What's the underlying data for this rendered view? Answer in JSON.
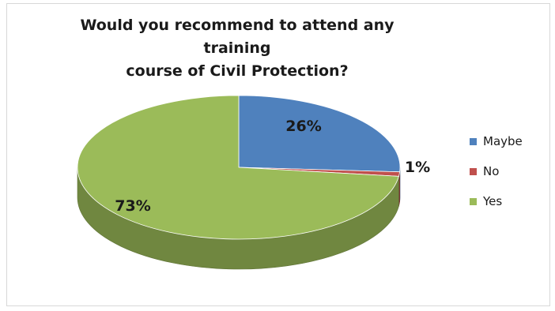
{
  "chart_data": {
    "type": "pie",
    "title_lines": [
      "Would you recommend to attend any training",
      "course of Civil Protection?"
    ],
    "slices": [
      {
        "label": "Maybe",
        "value": 26,
        "display": "26%",
        "color": "#4f81bd"
      },
      {
        "label": "No",
        "value": 1,
        "display": "1%",
        "color": "#c0504d"
      },
      {
        "label": "Yes",
        "value": 73,
        "display": "73%",
        "color": "#9bbb59"
      }
    ],
    "legend_placement": "right",
    "three_d": true
  }
}
